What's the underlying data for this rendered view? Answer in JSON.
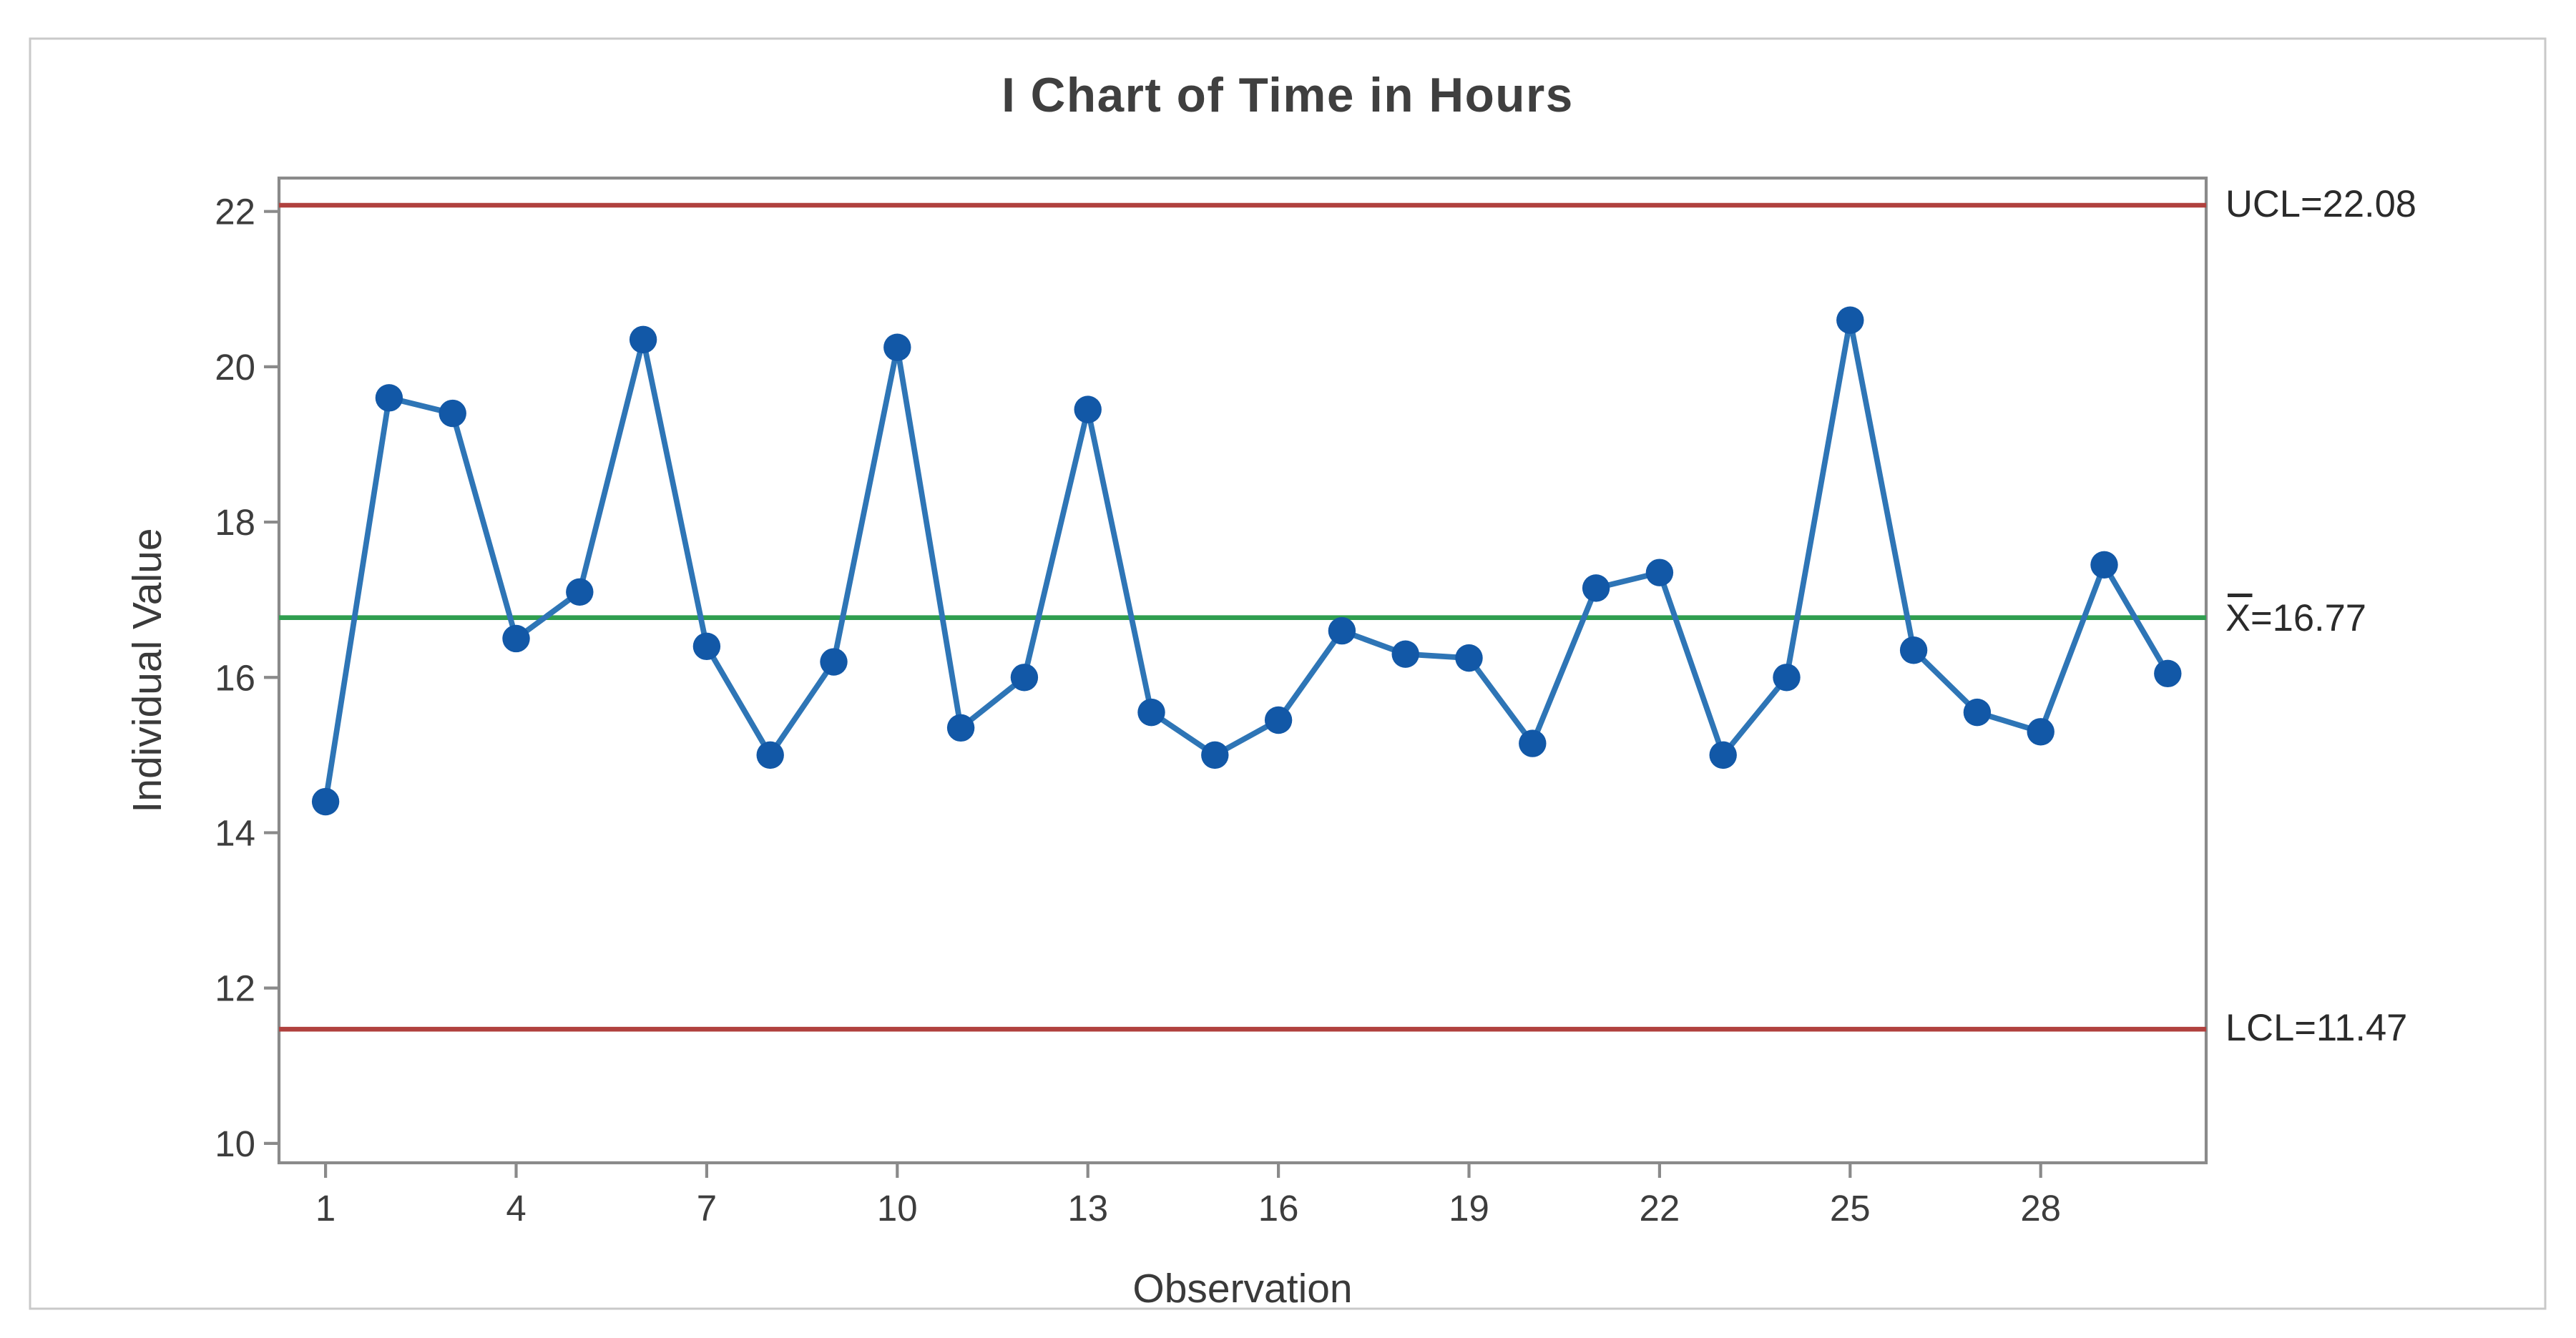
{
  "window": {
    "background": "#ffffff",
    "outer_border_color": "#c9c9c9",
    "frame_color": "#8a8a8a",
    "tick_label_color": "#333333",
    "text_color": "#3d3d3d"
  },
  "chart_data": {
    "type": "line",
    "title": "I Chart of Time in Hours",
    "xlabel": "Observation",
    "ylabel": "Individual Value",
    "grid": false,
    "legend_position": "none",
    "x": [
      1,
      2,
      3,
      4,
      5,
      6,
      7,
      8,
      9,
      10,
      11,
      12,
      13,
      14,
      15,
      16,
      17,
      18,
      19,
      20,
      21,
      22,
      23,
      24,
      25,
      26,
      27,
      28,
      29,
      30
    ],
    "values": [
      14.4,
      19.6,
      19.4,
      16.5,
      17.1,
      20.35,
      16.4,
      15.0,
      16.2,
      20.25,
      15.35,
      16.0,
      19.45,
      15.55,
      15.0,
      15.45,
      16.6,
      16.3,
      16.25,
      15.15,
      17.15,
      17.35,
      15.0,
      16.0,
      20.6,
      16.35,
      15.55,
      15.3,
      17.45,
      16.05
    ],
    "yticks": [
      10,
      12,
      14,
      16,
      18,
      20,
      22
    ],
    "xticks": [
      1,
      4,
      7,
      10,
      13,
      16,
      19,
      22,
      25,
      28
    ],
    "ylim": [
      9.75,
      22.43
    ],
    "center_line": {
      "value": 16.77,
      "label": "X=16.77",
      "color": "#2f9e4f",
      "has_overbar": true
    },
    "ucl": {
      "value": 22.08,
      "label": "UCL=22.08",
      "color": "#b0413e"
    },
    "lcl": {
      "value": 11.47,
      "label": "LCL=11.47",
      "color": "#b0413e"
    },
    "series": [
      {
        "name": "Time in Hours",
        "line_color": "#2e75b6",
        "marker_color": "#1258a7",
        "marker": "circle"
      }
    ]
  }
}
